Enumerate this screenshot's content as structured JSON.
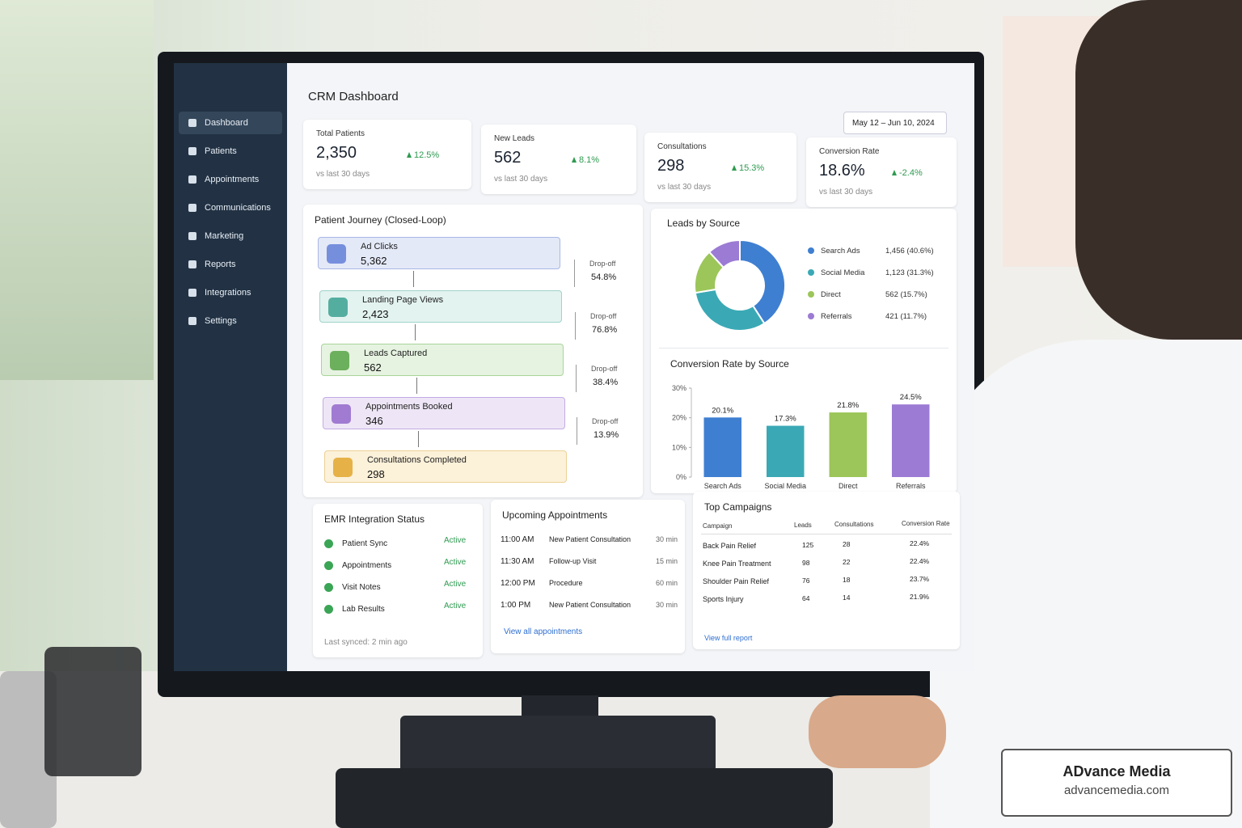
{
  "sidebar": {
    "items": [
      "Dashboard",
      "Patients",
      "Appointments",
      "Communications",
      "Marketing",
      "Reports",
      "Integrations",
      "Settings"
    ]
  },
  "header": {
    "title": "CRM Dashboard",
    "date_range": "May 12 – Jun 10, 2024"
  },
  "kpis": [
    {
      "label": "Total Patients",
      "value": "2,350",
      "change": "12.5%",
      "note": "vs last 30 days"
    },
    {
      "label": "New Leads",
      "value": "562",
      "change": "8.1%",
      "note": "vs last 30 days"
    },
    {
      "label": "Consultations",
      "value": "298",
      "change": "15.3%",
      "note": "vs last 30 days"
    },
    {
      "label": "Conversion Rate",
      "value": "18.6%",
      "change": "-2.4%",
      "note": "vs last 30 days"
    }
  ],
  "journey": {
    "title": "Patient Journey (Closed-Loop)",
    "steps": [
      {
        "label": "Ad Clicks",
        "value": "5,362"
      },
      {
        "label": "Landing Page Views",
        "value": "2,423"
      },
      {
        "label": "Leads Captured",
        "value": "562"
      },
      {
        "label": "Appointments Booked",
        "value": "346"
      },
      {
        "label": "Consultations Completed",
        "value": "298"
      }
    ],
    "dropoffs": [
      {
        "label": "Drop-off",
        "value": "54.8%"
      },
      {
        "label": "Drop-off",
        "value": "76.8%"
      },
      {
        "label": "Drop-off",
        "value": "38.4%"
      },
      {
        "label": "Drop-off",
        "value": "13.9%"
      }
    ]
  },
  "chart_data": [
    {
      "type": "pie",
      "title": "Leads by Source",
      "categories": [
        "Search Ads",
        "Social Media",
        "Direct",
        "Referrals"
      ],
      "values": [
        40.6,
        31.3,
        15.7,
        11.7
      ],
      "value_labels": [
        "1,456 (40.6%)",
        "1,123 (31.3%)",
        "562 (15.7%)",
        "421 (11.7%)"
      ],
      "colors": [
        "#3f7fd1",
        "#3aa9b5",
        "#9cc65a",
        "#9b7bd4"
      ]
    },
    {
      "type": "bar",
      "title": "Conversion Rate by Source",
      "categories": [
        "Search Ads",
        "Social Media",
        "Direct",
        "Referrals"
      ],
      "values": [
        20.1,
        17.3,
        21.8,
        24.5
      ],
      "value_labels": [
        "20.1%",
        "17.3%",
        "21.8%",
        "24.5%"
      ],
      "colors": [
        "#3f7fd1",
        "#3aa9b5",
        "#9cc65a",
        "#9b7bd4"
      ],
      "ylim": [
        0,
        30
      ],
      "yticks": [
        {
          "value": 0,
          "label": "0%"
        },
        {
          "value": 10,
          "label": "10%"
        },
        {
          "value": 20,
          "label": "20%"
        },
        {
          "value": 30,
          "label": "30%"
        }
      ],
      "grid": false
    }
  ],
  "emr": {
    "title": "EMR Integration Status",
    "items": [
      {
        "name": "Patient Sync",
        "status": "Active"
      },
      {
        "name": "Appointments",
        "status": "Active"
      },
      {
        "name": "Visit Notes",
        "status": "Active"
      },
      {
        "name": "Lab Results",
        "status": "Active"
      }
    ],
    "footer": "Last synced: 2 min ago"
  },
  "appointments": {
    "title": "Upcoming Appointments",
    "rows": [
      [
        "11:00 AM",
        "New Patient Consultation",
        "30 min"
      ],
      [
        "11:30 AM",
        "Follow-up Visit",
        "15 min"
      ],
      [
        "12:00 PM",
        "Procedure",
        "60 min"
      ],
      [
        "1:00 PM",
        "New Patient Consultation",
        "30 min"
      ]
    ],
    "link": "View all appointments"
  },
  "campaigns": {
    "title": "Top Campaigns",
    "columns": [
      "Campaign",
      "Leads",
      "Consultations",
      "Conversion Rate"
    ],
    "rows": [
      [
        "Back Pain Relief",
        "125",
        "28",
        "22.4%"
      ],
      [
        "Knee Pain Treatment",
        "98",
        "22",
        "22.4%"
      ],
      [
        "Shoulder Pain Relief",
        "76",
        "18",
        "23.7%"
      ],
      [
        "Sports Injury",
        "64",
        "14",
        "21.9%"
      ]
    ],
    "link": "View full report"
  },
  "watermark": {
    "name": "ADvance Media",
    "url": "advancemedia.com"
  }
}
